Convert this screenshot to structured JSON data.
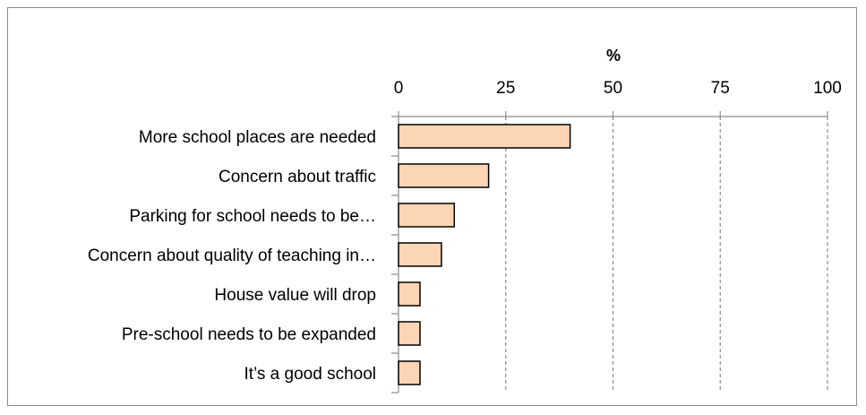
{
  "chart_data": {
    "type": "bar",
    "orientation": "horizontal",
    "axis_unit_label": "%",
    "x_ticks": [
      0,
      25,
      50,
      75,
      100
    ],
    "xlim": [
      0,
      100
    ],
    "categories": [
      "More school places are needed",
      "Concern about traffic",
      "Parking for school needs to be…",
      "Concern about quality of teaching in…",
      "House value will drop",
      "Pre-school needs to be expanded",
      "It’s a good school"
    ],
    "values": [
      40,
      21,
      13,
      10,
      5,
      5,
      5
    ],
    "grid": "vertical dashed",
    "colors": {
      "bar_fill": "#fcd5b5",
      "bar_stroke": "#000000",
      "grid": "#8c8c8c"
    }
  }
}
